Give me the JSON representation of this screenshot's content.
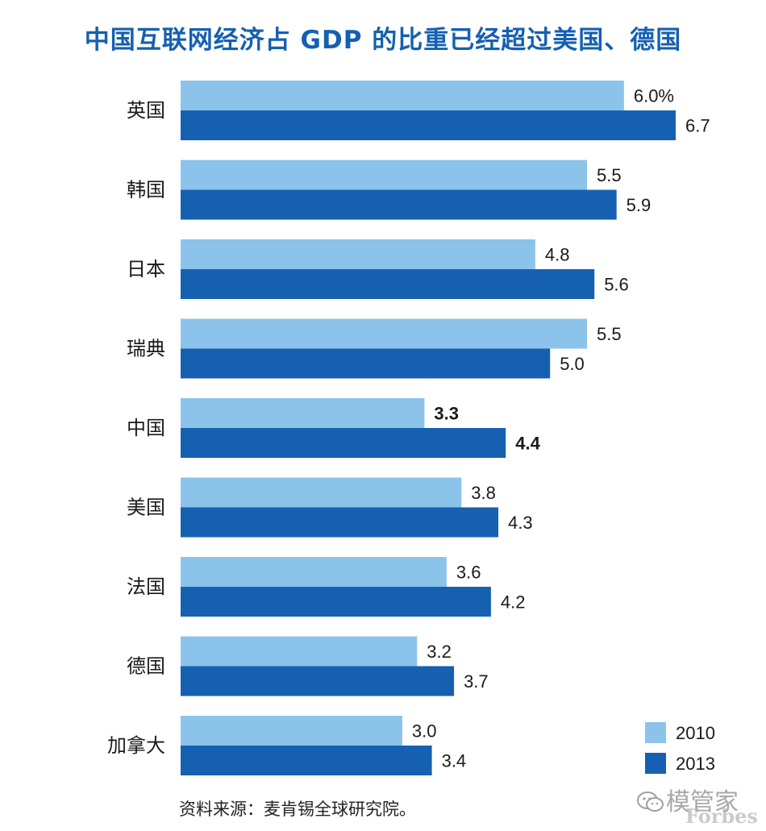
{
  "chart_data": {
    "type": "bar",
    "orientation": "horizontal",
    "title": "中国互联网经济占 GDP 的比重已经超过美国、德国",
    "categories": [
      "英国",
      "韩国",
      "日本",
      "瑞典",
      "中国",
      "美国",
      "法国",
      "德国",
      "加拿大"
    ],
    "series": [
      {
        "name": "2010",
        "color": "#8cc3ea",
        "values": [
          6.0,
          5.5,
          4.8,
          5.5,
          3.3,
          3.8,
          3.6,
          3.2,
          3.0
        ],
        "labels": [
          "6.0%",
          "5.5",
          "4.8",
          "5.5",
          "3.3",
          "3.8",
          "3.6",
          "3.2",
          "3.0"
        ]
      },
      {
        "name": "2013",
        "color": "#1560b0",
        "values": [
          6.7,
          5.9,
          5.6,
          5.0,
          4.4,
          4.3,
          4.2,
          3.7,
          3.4
        ],
        "labels": [
          "6.7",
          "5.9",
          "5.6",
          "5.0",
          "4.4",
          "4.3",
          "4.2",
          "3.7",
          "3.4"
        ]
      }
    ],
    "highlight_category": "中国",
    "xlim": [
      0,
      7
    ],
    "grid": false,
    "legend": "bottom-right",
    "source": "资料来源：麦肯锡全球研究院。"
  },
  "watermark": {
    "text": "模管家",
    "sub": "Forbes"
  }
}
